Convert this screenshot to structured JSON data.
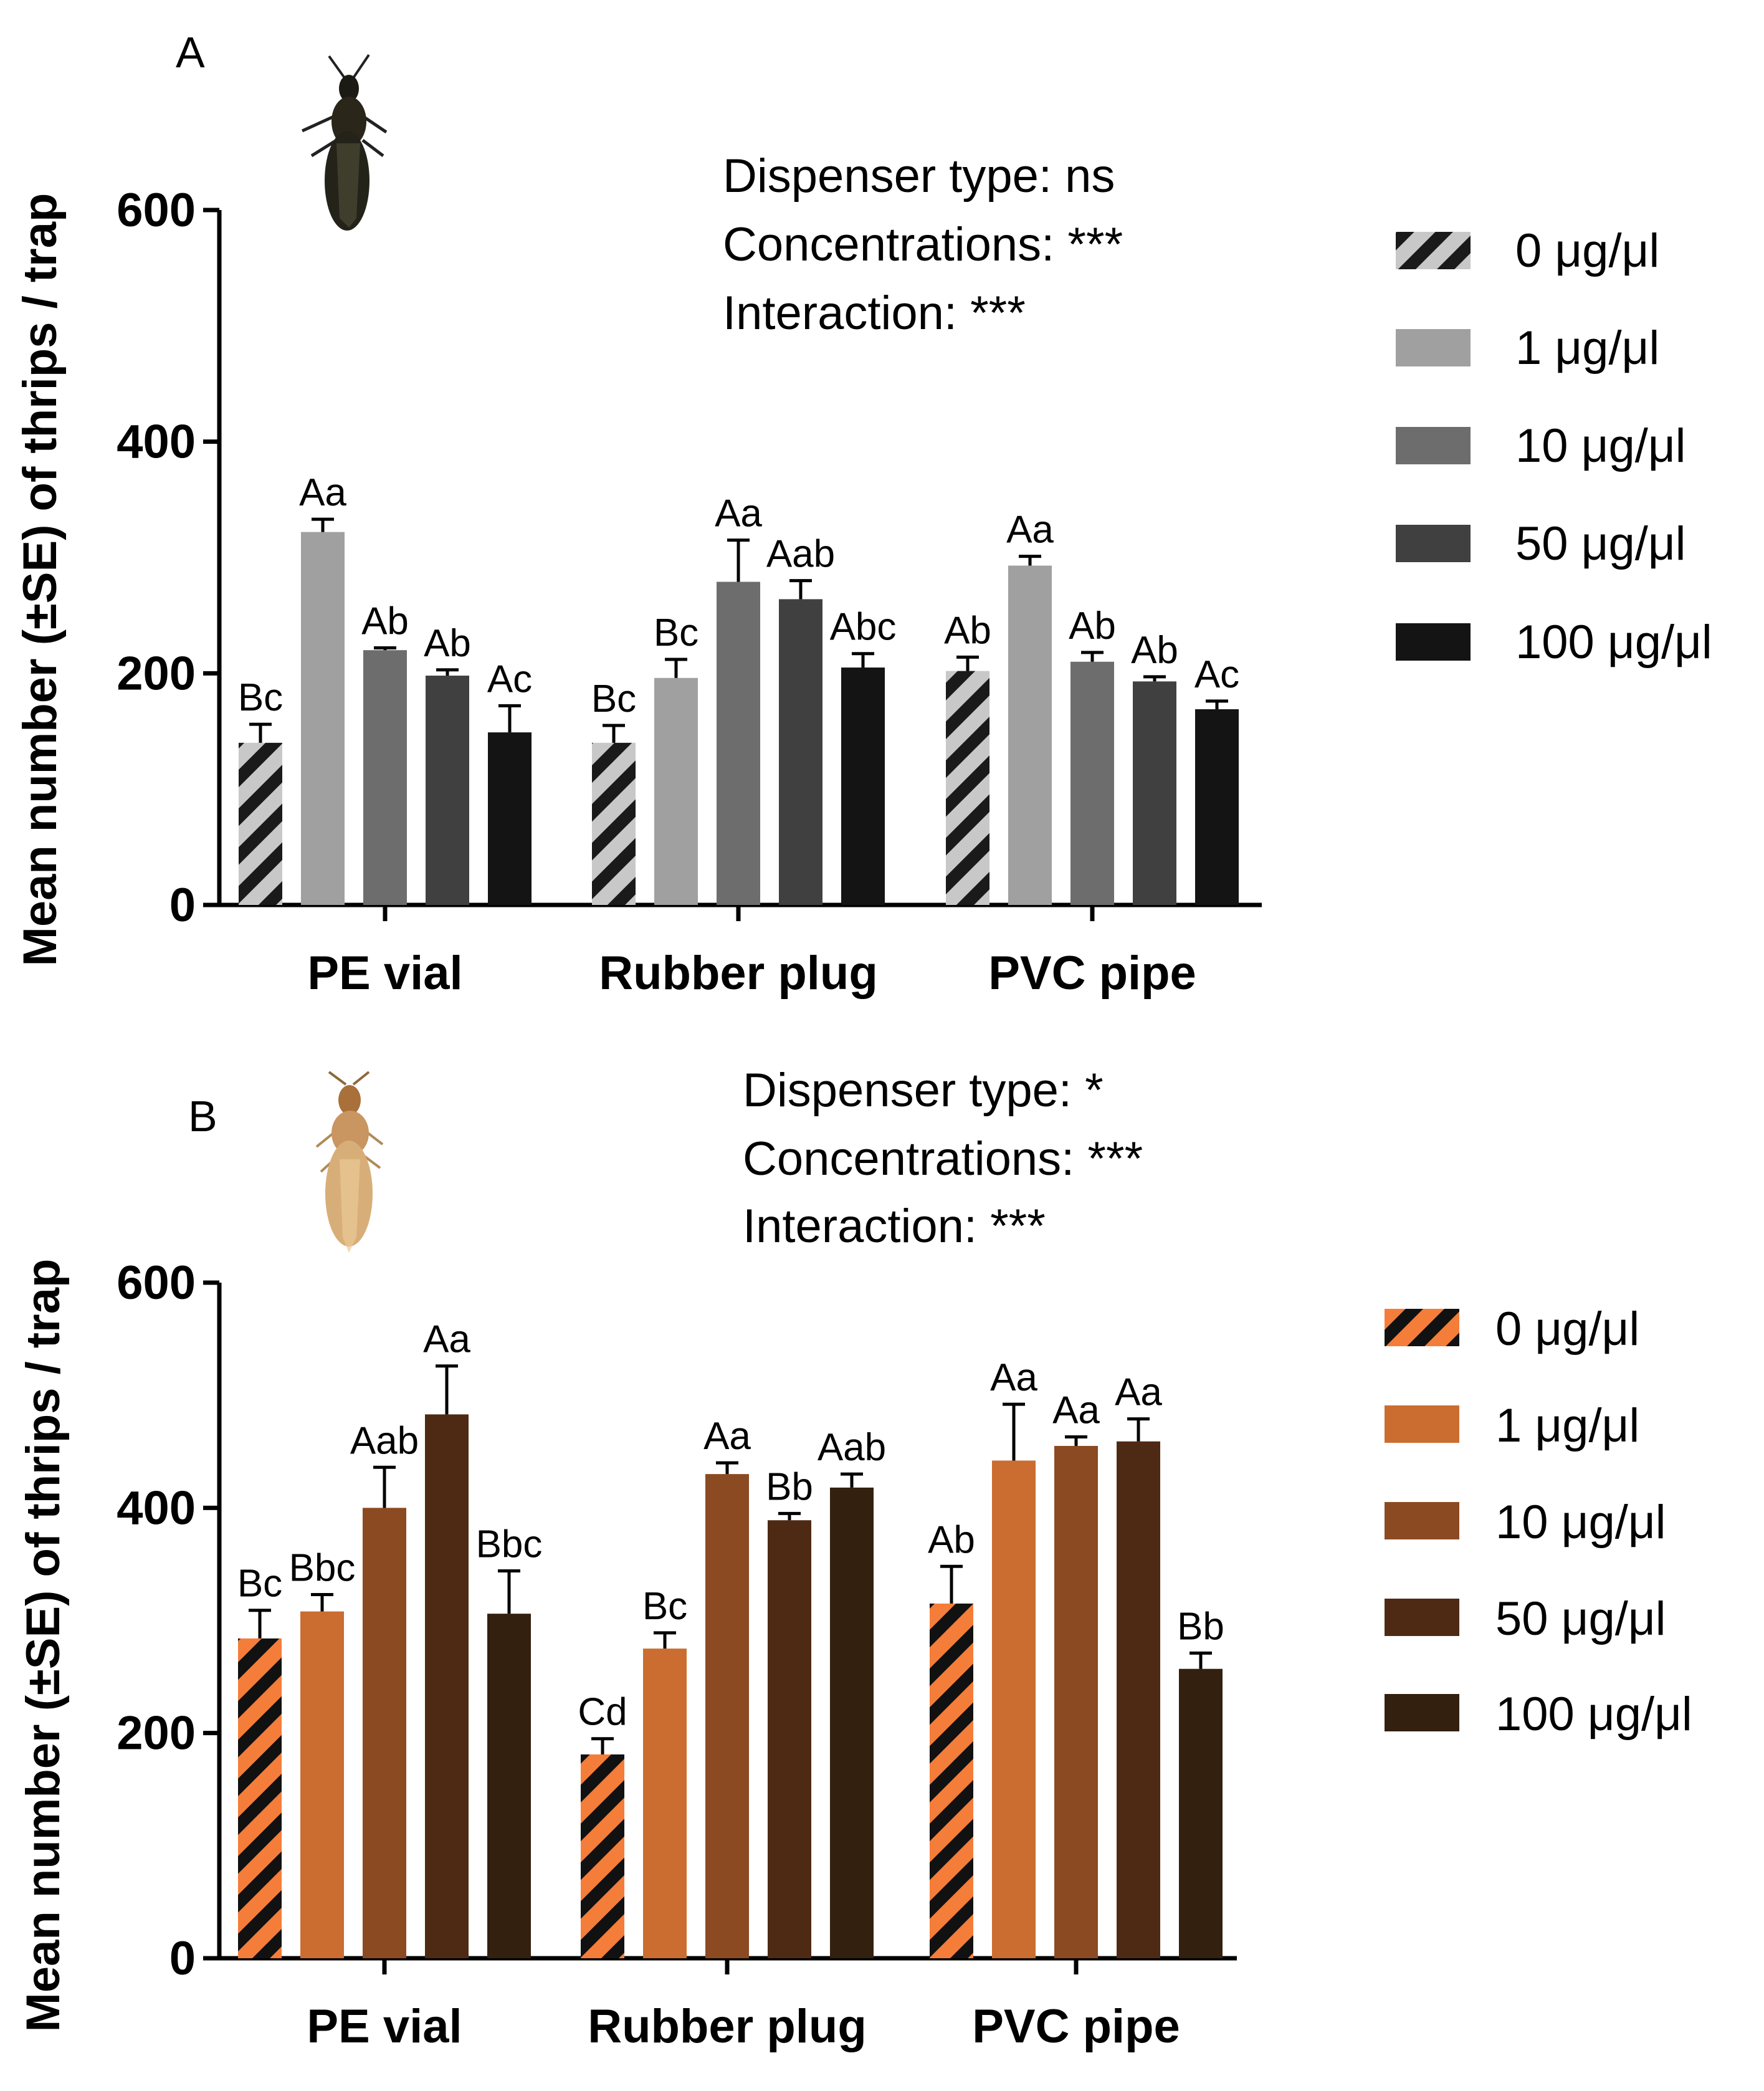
{
  "chart_data": [
    {
      "panel_label": "A",
      "type": "bar",
      "insect": "dark-thrips-icon",
      "categories": [
        "PE vial",
        "Rubber plug",
        "PVC pipe"
      ],
      "ylabel": "Mean number (±SE) of thrips / trap",
      "ylim": [
        0,
        600
      ],
      "yticks": [
        "0",
        "200",
        "400",
        "600"
      ],
      "stats": [
        "Dispenser type: ns",
        "Concentrations: ***",
        "Interaction: ***"
      ],
      "series": [
        {
          "name": "0 μg/μl",
          "color": "#c8c8c8",
          "hatched": true,
          "values": [
            140,
            140,
            202
          ],
          "errors": [
            16,
            15,
            12
          ],
          "letters": [
            "Bc",
            "Bc",
            "Ab"
          ]
        },
        {
          "name": "1 μg/μl",
          "color": "#a0a0a0",
          "hatched": false,
          "values": [
            322,
            196,
            293
          ],
          "errors": [
            11,
            16,
            8
          ],
          "letters": [
            "Aa",
            "Bc",
            "Aa"
          ]
        },
        {
          "name": "10 μg/μl",
          "color": "#6d6d6d",
          "hatched": false,
          "values": [
            220,
            279,
            210
          ],
          "errors": [
            2,
            36,
            8
          ],
          "letters": [
            "Ab",
            "Aa",
            "Ab"
          ]
        },
        {
          "name": "50 μg/μl",
          "color": "#404040",
          "hatched": false,
          "values": [
            198,
            264,
            193
          ],
          "errors": [
            5,
            16,
            4
          ],
          "letters": [
            "Ab",
            "Aab",
            "Ab"
          ]
        },
        {
          "name": "100 μg/μl",
          "color": "#141414",
          "hatched": false,
          "values": [
            149,
            205,
            169
          ],
          "errors": [
            23,
            12,
            7
          ],
          "letters": [
            "Ac",
            "Abc",
            "Ac"
          ]
        }
      ]
    },
    {
      "panel_label": "B",
      "type": "bar",
      "insect": "pale-thrips-icon",
      "categories": [
        "PE vial",
        "Rubber plug",
        "PVC pipe"
      ],
      "ylabel": "Mean number (±SE) of thrips / trap",
      "ylim": [
        0,
        600
      ],
      "yticks": [
        "0",
        "200",
        "400",
        "600"
      ],
      "stats": [
        "Dispenser type: *",
        "Concentrations: ***",
        "Interaction: ***"
      ],
      "series": [
        {
          "name": "0 μg/μl",
          "color": "#f47d3a",
          "hatched": true,
          "values": [
            284,
            181,
            315
          ],
          "errors": [
            25,
            14,
            33
          ],
          "letters": [
            "Bc",
            "Cd",
            "Ab"
          ]
        },
        {
          "name": "1 μg/μl",
          "color": "#cb6d30",
          "hatched": false,
          "values": [
            308,
            275,
            442
          ],
          "errors": [
            15,
            14,
            50
          ],
          "letters": [
            "Bbc",
            "Bc",
            "Aa"
          ]
        },
        {
          "name": "10 μg/μl",
          "color": "#8b4a22",
          "hatched": false,
          "values": [
            400,
            430,
            455
          ],
          "errors": [
            36,
            10,
            8
          ],
          "letters": [
            "Aab",
            "Aa",
            "Aa"
          ]
        },
        {
          "name": "50 μg/μl",
          "color": "#4e2a14",
          "hatched": false,
          "values": [
            483,
            389,
            459
          ],
          "errors": [
            43,
            6,
            20
          ],
          "letters": [
            "Aa",
            "Bb",
            "Aa"
          ]
        },
        {
          "name": "100 μg/μl",
          "color": "#33200f",
          "hatched": false,
          "values": [
            306,
            418,
            257
          ],
          "errors": [
            38,
            12,
            14
          ],
          "letters": [
            "Bbc",
            "Aab",
            "Bb"
          ]
        }
      ]
    }
  ]
}
